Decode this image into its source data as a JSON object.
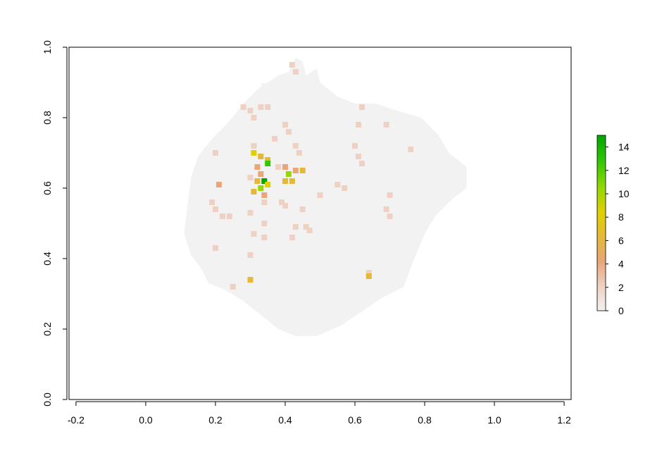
{
  "chart_data": {
    "type": "heatmap",
    "title": "",
    "xlabel": "",
    "ylabel": "",
    "xlim": [
      -0.22,
      1.22
    ],
    "ylim": [
      0.0,
      1.0
    ],
    "x_ticks": [
      -0.2,
      0.0,
      0.2,
      0.4,
      0.6,
      0.8,
      1.0,
      1.2
    ],
    "x_tick_labels": [
      "-0.2",
      "0.0",
      "0.2",
      "0.4",
      "0.6",
      "0.8",
      "1.0",
      "1.2"
    ],
    "y_ticks": [
      0.0,
      0.2,
      0.4,
      0.6,
      0.8,
      1.0
    ],
    "y_tick_labels": [
      "0.0",
      "0.2",
      "0.4",
      "0.6",
      "0.8",
      "1.0"
    ],
    "legend": {
      "placement": "right",
      "min": 0,
      "max": 15,
      "ticks": [
        0,
        2,
        4,
        6,
        8,
        10,
        12,
        14
      ],
      "tick_labels": [
        "0",
        "2",
        "4",
        "6",
        "8",
        "10",
        "12",
        "14"
      ],
      "colors": [
        "#F2F2F2",
        "#EED1C2",
        "#E8A679",
        "#E5B937",
        "#E0D000",
        "#96D800",
        "#31C800",
        "#00A600"
      ]
    },
    "background_value": 0,
    "footprint": {
      "description_free": true,
      "boundary": [
        [
          0.11,
          0.47
        ],
        [
          0.12,
          0.55
        ],
        [
          0.13,
          0.63
        ],
        [
          0.15,
          0.69
        ],
        [
          0.19,
          0.74
        ],
        [
          0.24,
          0.79
        ],
        [
          0.28,
          0.84
        ],
        [
          0.32,
          0.88
        ],
        [
          0.35,
          0.9
        ],
        [
          0.38,
          0.92
        ],
        [
          0.41,
          0.93
        ],
        [
          0.43,
          0.97
        ],
        [
          0.45,
          0.96
        ],
        [
          0.46,
          0.92
        ],
        [
          0.49,
          0.94
        ],
        [
          0.5,
          0.9
        ],
        [
          0.55,
          0.86
        ],
        [
          0.6,
          0.84
        ],
        [
          0.66,
          0.84
        ],
        [
          0.72,
          0.82
        ],
        [
          0.79,
          0.8
        ],
        [
          0.84,
          0.75
        ],
        [
          0.87,
          0.7
        ],
        [
          0.92,
          0.66
        ],
        [
          0.92,
          0.6
        ],
        [
          0.88,
          0.57
        ],
        [
          0.83,
          0.52
        ],
        [
          0.8,
          0.47
        ],
        [
          0.77,
          0.4
        ],
        [
          0.74,
          0.32
        ],
        [
          0.68,
          0.29
        ],
        [
          0.62,
          0.25
        ],
        [
          0.56,
          0.21
        ],
        [
          0.49,
          0.18
        ],
        [
          0.43,
          0.18
        ],
        [
          0.38,
          0.2
        ],
        [
          0.33,
          0.24
        ],
        [
          0.28,
          0.28
        ],
        [
          0.23,
          0.31
        ],
        [
          0.18,
          0.33
        ],
        [
          0.16,
          0.37
        ],
        [
          0.13,
          0.41
        ]
      ]
    },
    "cells": [
      [
        0.28,
        0.83,
        3
      ],
      [
        0.3,
        0.82,
        3
      ],
      [
        0.33,
        0.83,
        3
      ],
      [
        0.35,
        0.83,
        2
      ],
      [
        0.31,
        0.8,
        2
      ],
      [
        0.42,
        0.95,
        2
      ],
      [
        0.43,
        0.93,
        2
      ],
      [
        0.34,
        0.89,
        1
      ],
      [
        0.25,
        0.77,
        1
      ],
      [
        0.4,
        0.78,
        3
      ],
      [
        0.41,
        0.76,
        2
      ],
      [
        0.37,
        0.74,
        2
      ],
      [
        0.43,
        0.72,
        2
      ],
      [
        0.44,
        0.7,
        3
      ],
      [
        0.2,
        0.7,
        2
      ],
      [
        0.31,
        0.72,
        2
      ],
      [
        0.31,
        0.7,
        8
      ],
      [
        0.33,
        0.69,
        7
      ],
      [
        0.35,
        0.68,
        6
      ],
      [
        0.35,
        0.67,
        12
      ],
      [
        0.32,
        0.66,
        4
      ],
      [
        0.33,
        0.64,
        5
      ],
      [
        0.38,
        0.66,
        3
      ],
      [
        0.4,
        0.66,
        5
      ],
      [
        0.41,
        0.64,
        10
      ],
      [
        0.43,
        0.65,
        4
      ],
      [
        0.45,
        0.65,
        6
      ],
      [
        0.4,
        0.62,
        7
      ],
      [
        0.42,
        0.62,
        6
      ],
      [
        0.34,
        0.62,
        15
      ],
      [
        0.32,
        0.62,
        6
      ],
      [
        0.35,
        0.61,
        8
      ],
      [
        0.33,
        0.6,
        10
      ],
      [
        0.31,
        0.59,
        7
      ],
      [
        0.34,
        0.58,
        5
      ],
      [
        0.3,
        0.63,
        3
      ],
      [
        0.21,
        0.61,
        5
      ],
      [
        0.62,
        0.83,
        2
      ],
      [
        0.61,
        0.78,
        2
      ],
      [
        0.69,
        0.78,
        3
      ],
      [
        0.6,
        0.72,
        2
      ],
      [
        0.61,
        0.69,
        2
      ],
      [
        0.62,
        0.67,
        2
      ],
      [
        0.52,
        0.71,
        1
      ],
      [
        0.55,
        0.61,
        2
      ],
      [
        0.57,
        0.6,
        2
      ],
      [
        0.5,
        0.58,
        2
      ],
      [
        0.7,
        0.58,
        2
      ],
      [
        0.69,
        0.54,
        3
      ],
      [
        0.7,
        0.52,
        2
      ],
      [
        0.76,
        0.71,
        2
      ],
      [
        0.51,
        0.78,
        1
      ],
      [
        0.19,
        0.56,
        3
      ],
      [
        0.2,
        0.54,
        3
      ],
      [
        0.22,
        0.52,
        2
      ],
      [
        0.24,
        0.52,
        2
      ],
      [
        0.3,
        0.53,
        2
      ],
      [
        0.34,
        0.56,
        2
      ],
      [
        0.34,
        0.5,
        2
      ],
      [
        0.39,
        0.56,
        2
      ],
      [
        0.4,
        0.55,
        2
      ],
      [
        0.45,
        0.54,
        2
      ],
      [
        0.47,
        0.48,
        2
      ],
      [
        0.46,
        0.49,
        2
      ],
      [
        0.43,
        0.49,
        2
      ],
      [
        0.42,
        0.46,
        2
      ],
      [
        0.45,
        0.47,
        1
      ],
      [
        0.31,
        0.47,
        2
      ],
      [
        0.34,
        0.46,
        3
      ],
      [
        0.2,
        0.43,
        2
      ],
      [
        0.3,
        0.41,
        2
      ],
      [
        0.52,
        0.38,
        1
      ],
      [
        0.3,
        0.34,
        6
      ],
      [
        0.64,
        0.36,
        3
      ],
      [
        0.64,
        0.35,
        6
      ],
      [
        0.25,
        0.32,
        2
      ]
    ]
  }
}
